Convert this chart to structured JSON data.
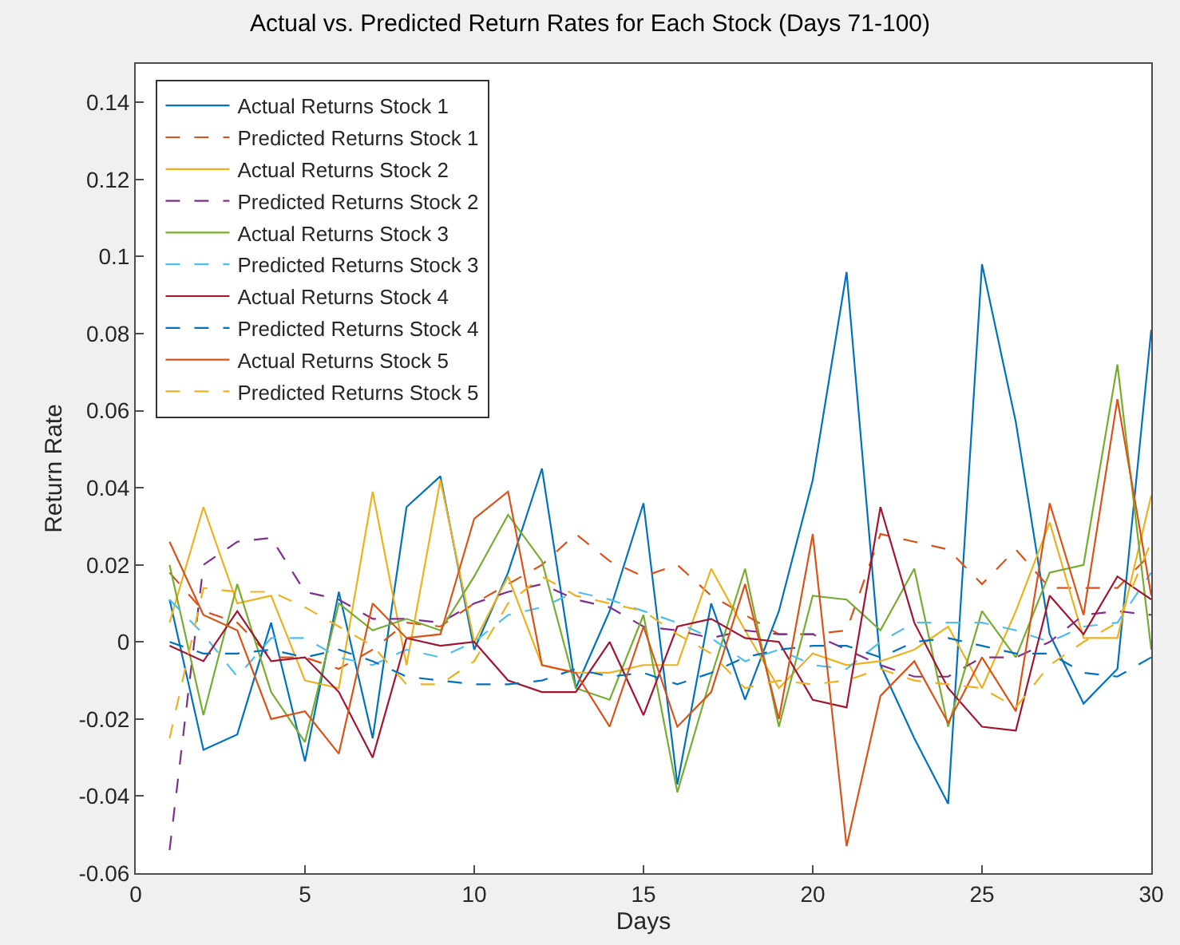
{
  "chart_data": {
    "type": "line",
    "title": "Actual vs. Predicted Return Rates for Each Stock (Days 71-100)",
    "xlabel": "Days",
    "ylabel": "Return Rate",
    "x": [
      1,
      2,
      3,
      4,
      5,
      6,
      7,
      8,
      9,
      10,
      11,
      12,
      13,
      14,
      15,
      16,
      17,
      18,
      19,
      20,
      21,
      22,
      23,
      24,
      25,
      26,
      27,
      28,
      29,
      30
    ],
    "xlim": [
      0,
      30
    ],
    "xticks": [
      0,
      5,
      10,
      15,
      20,
      25,
      30
    ],
    "ylim": [
      -0.06,
      0.15
    ],
    "yticks": [
      -0.06,
      -0.04,
      -0.02,
      0,
      0.02,
      0.04,
      0.06,
      0.08,
      0.1,
      0.12,
      0.14
    ],
    "grid": false,
    "legend": "top left",
    "marker": "none",
    "series": [
      {
        "name": "Actual Returns Stock 1",
        "color": "#0072bd",
        "line_style": "solid",
        "values": [
          0.011,
          -0.028,
          -0.024,
          0.005,
          -0.031,
          0.013,
          -0.025,
          0.035,
          0.043,
          -0.002,
          0.018,
          0.045,
          -0.012,
          0.008,
          0.036,
          -0.037,
          0.01,
          -0.015,
          0.008,
          0.042,
          0.096,
          -0.006,
          -0.025,
          -0.042,
          0.098,
          0.057,
          0.002,
          -0.016,
          -0.007,
          0.081
        ]
      },
      {
        "name": "Predicted Returns Stock 1",
        "color": "#d95319",
        "line_style": "dashed",
        "values": [
          0.018,
          0.008,
          0.005,
          -0.004,
          -0.004,
          -0.007,
          -0.002,
          0.005,
          0.004,
          0.01,
          0.015,
          0.02,
          0.028,
          0.021,
          0.017,
          0.02,
          0.012,
          0.007,
          0.002,
          0.002,
          0.003,
          0.028,
          0.026,
          0.024,
          0.015,
          0.024,
          0.014,
          0.014,
          0.014,
          0.023
        ]
      },
      {
        "name": "Actual Returns Stock 2",
        "color": "#edb120",
        "line_style": "solid",
        "values": [
          0.005,
          0.035,
          0.01,
          0.012,
          -0.01,
          -0.012,
          0.039,
          -0.006,
          0.042,
          0.0,
          0.017,
          -0.006,
          -0.008,
          -0.008,
          -0.006,
          -0.006,
          0.019,
          0.003,
          -0.012,
          -0.003,
          -0.006,
          -0.005,
          -0.002,
          0.004,
          -0.012,
          0.008,
          0.031,
          0.001,
          0.001,
          0.038
        ]
      },
      {
        "name": "Predicted Returns Stock 2",
        "color": "#7e2f8e",
        "line_style": "dashed",
        "values": [
          -0.054,
          0.02,
          0.026,
          0.027,
          0.013,
          0.011,
          0.006,
          0.006,
          0.005,
          0.01,
          0.013,
          0.015,
          0.011,
          0.009,
          0.004,
          0.003,
          0.001,
          0.003,
          0.002,
          0.002,
          -0.002,
          -0.006,
          -0.009,
          -0.009,
          -0.004,
          -0.004,
          0.0,
          0.007,
          0.008,
          0.007
        ]
      },
      {
        "name": "Actual Returns Stock 3",
        "color": "#77ac30",
        "line_style": "solid",
        "values": [
          0.02,
          -0.019,
          0.015,
          -0.013,
          -0.026,
          0.01,
          0.003,
          0.006,
          0.003,
          0.017,
          0.033,
          0.021,
          -0.012,
          -0.015,
          0.007,
          -0.039,
          -0.009,
          0.019,
          -0.022,
          0.012,
          0.011,
          0.003,
          0.019,
          -0.022,
          0.008,
          -0.004,
          0.018,
          0.02,
          0.072,
          -0.002
        ]
      },
      {
        "name": "Predicted Returns Stock 3",
        "color": "#4dbeee",
        "line_style": "dashed",
        "values": [
          0.011,
          0.002,
          -0.009,
          0.001,
          0.001,
          -0.004,
          -0.006,
          -0.002,
          -0.004,
          0.0,
          0.007,
          0.009,
          0.013,
          0.011,
          0.008,
          0.005,
          0.001,
          -0.005,
          -0.002,
          -0.006,
          -0.007,
          0.0,
          0.005,
          0.005,
          0.005,
          0.003,
          0.0,
          0.004,
          0.005,
          0.018
        ]
      },
      {
        "name": "Actual Returns Stock 4",
        "color": "#a2142f",
        "line_style": "solid",
        "values": [
          -0.001,
          -0.005,
          0.008,
          -0.005,
          -0.004,
          -0.013,
          -0.03,
          0.001,
          -0.001,
          0.0,
          -0.01,
          -0.013,
          -0.013,
          0.0,
          -0.019,
          0.004,
          0.006,
          0.001,
          0.0,
          -0.015,
          -0.017,
          0.035,
          0.005,
          -0.012,
          -0.022,
          -0.023,
          0.012,
          0.002,
          0.017,
          0.011
        ]
      },
      {
        "name": "Predicted Returns Stock 4",
        "color": "#0072bd",
        "line_style": "dashed",
        "values": [
          0.0,
          -0.003,
          -0.003,
          -0.002,
          -0.004,
          -0.002,
          -0.005,
          -0.009,
          -0.01,
          -0.011,
          -0.011,
          -0.01,
          -0.007,
          -0.009,
          -0.008,
          -0.011,
          -0.008,
          -0.004,
          -0.002,
          -0.001,
          -0.001,
          -0.004,
          0.0,
          0.001,
          -0.001,
          -0.003,
          -0.003,
          -0.008,
          -0.009,
          -0.004
        ]
      },
      {
        "name": "Actual Returns Stock 5",
        "color": "#d95319",
        "line_style": "solid",
        "values": [
          0.026,
          0.007,
          0.003,
          -0.02,
          -0.018,
          -0.029,
          0.01,
          0.001,
          0.002,
          0.032,
          0.039,
          -0.006,
          -0.008,
          -0.022,
          0.004,
          -0.022,
          -0.013,
          0.015,
          -0.02,
          0.028,
          -0.053,
          -0.014,
          -0.005,
          -0.021,
          -0.004,
          -0.018,
          0.036,
          0.007,
          0.063,
          0.012
        ]
      },
      {
        "name": "Predicted Returns Stock 5",
        "color": "#edb120",
        "line_style": "dashed",
        "values": [
          -0.025,
          0.014,
          0.013,
          0.013,
          0.009,
          0.004,
          -0.001,
          -0.011,
          -0.011,
          -0.005,
          0.01,
          0.017,
          0.012,
          0.01,
          0.008,
          0.002,
          -0.003,
          -0.012,
          -0.01,
          -0.011,
          -0.01,
          -0.007,
          -0.01,
          -0.011,
          -0.012,
          -0.017,
          -0.006,
          0.0,
          0.005,
          0.026
        ]
      }
    ]
  }
}
